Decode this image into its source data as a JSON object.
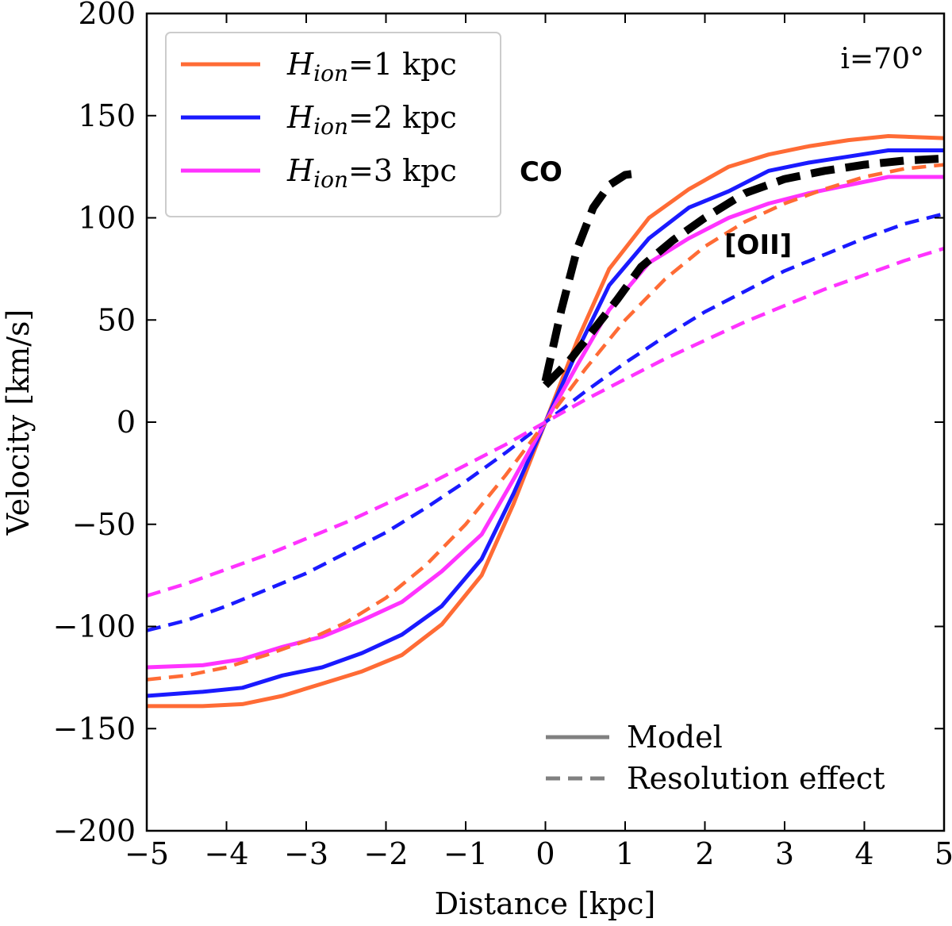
{
  "chart_data": {
    "type": "line",
    "title": "",
    "xlabel": "Distance [kpc]",
    "ylabel": "Velocity [km/s]",
    "xlim": [
      -5,
      5
    ],
    "ylim": [
      -200,
      200
    ],
    "xticks": [
      -5,
      -4,
      -3,
      -2,
      -1,
      0,
      1,
      2,
      3,
      4,
      5
    ],
    "yticks": [
      -200,
      -150,
      -100,
      -50,
      0,
      50,
      100,
      150,
      200
    ],
    "grid": false,
    "annotations": {
      "inclination": "i=70°",
      "co_label": "CO",
      "oii_label": "[OII]"
    },
    "legend_colors": {
      "placement": "top-left",
      "entries": [
        {
          "symbol": "H",
          "subscript": "ion",
          "suffix": "=1 kpc",
          "color": "#ff6b35"
        },
        {
          "symbol": "H",
          "subscript": "ion",
          "suffix": "=2 kpc",
          "color": "#1a1aff"
        },
        {
          "symbol": "H",
          "subscript": "ion",
          "suffix": "=3 kpc",
          "color": "#ff33ff"
        }
      ]
    },
    "legend_styles": {
      "placement": "bottom-right",
      "entries": [
        {
          "label": "Model",
          "style": "solid",
          "color": "#808080"
        },
        {
          "label": "Resolution effect",
          "style": "dashed",
          "color": "#808080"
        }
      ]
    },
    "series": [
      {
        "id": "model-h1",
        "style": "solid",
        "color": "#ff6b35",
        "width": 5,
        "x": [
          -5,
          -4.3,
          -3.8,
          -3.3,
          -2.8,
          -2.3,
          -1.8,
          -1.3,
          -0.8,
          -0.4,
          0,
          0.4,
          0.8,
          1.3,
          1.8,
          2.3,
          2.8,
          3.3,
          3.8,
          4.3,
          5
        ],
        "y": [
          -139,
          -139,
          -138,
          -134,
          -128,
          -122,
          -114,
          -99,
          -75,
          -40,
          0,
          40,
          75,
          100,
          114,
          125,
          131,
          135,
          138,
          140,
          139
        ]
      },
      {
        "id": "model-h2",
        "style": "solid",
        "color": "#1a1aff",
        "width": 5,
        "x": [
          -5,
          -4.3,
          -3.8,
          -3.3,
          -2.8,
          -2.3,
          -1.8,
          -1.3,
          -0.8,
          -0.4,
          0,
          0.4,
          0.8,
          1.3,
          1.8,
          2.3,
          2.8,
          3.3,
          3.8,
          4.3,
          5
        ],
        "y": [
          -134,
          -132,
          -130,
          -124,
          -120,
          -113,
          -104,
          -90,
          -67,
          -35,
          0,
          35,
          67,
          90,
          105,
          113,
          123,
          127,
          130,
          133,
          133
        ]
      },
      {
        "id": "model-h3",
        "style": "solid",
        "color": "#ff33ff",
        "width": 5,
        "x": [
          -5,
          -4.3,
          -3.8,
          -3.3,
          -2.8,
          -2.3,
          -1.8,
          -1.3,
          -0.8,
          -0.4,
          0,
          0.4,
          0.8,
          1.3,
          1.8,
          2.3,
          2.8,
          3.3,
          3.8,
          4.3,
          5
        ],
        "y": [
          -120,
          -119,
          -116,
          -110,
          -105,
          -97,
          -88,
          -73,
          -55,
          -28,
          0,
          28,
          55,
          78,
          90,
          100,
          107,
          112,
          116,
          120,
          120
        ]
      },
      {
        "id": "res-h1",
        "style": "dashed",
        "color": "#ff6b35",
        "width": 4.5,
        "x": [
          -5,
          -4.5,
          -4,
          -3.5,
          -3,
          -2.5,
          -2,
          -1.5,
          -1,
          -0.5,
          0,
          0.5,
          1,
          1.5,
          2,
          2.5,
          3,
          3.5,
          4,
          4.5,
          5
        ],
        "y": [
          -126,
          -124,
          -120,
          -114,
          -107,
          -98,
          -86,
          -70,
          -50,
          -26,
          0,
          26,
          50,
          70,
          86,
          98,
          107,
          114,
          120,
          124,
          126
        ]
      },
      {
        "id": "res-h2",
        "style": "dashed",
        "color": "#1a1aff",
        "width": 4.5,
        "x": [
          -5,
          -4.5,
          -4,
          -3.5,
          -3,
          -2.5,
          -2,
          -1.5,
          -1,
          -0.5,
          0,
          0.5,
          1,
          1.5,
          2,
          2.5,
          3,
          3.5,
          4,
          4.5,
          5
        ],
        "y": [
          -102,
          -97,
          -90,
          -82,
          -74,
          -64,
          -54,
          -42,
          -29,
          -15,
          0,
          15,
          29,
          42,
          54,
          64,
          74,
          82,
          90,
          97,
          102
        ]
      },
      {
        "id": "res-h3",
        "style": "dashed",
        "color": "#ff33ff",
        "width": 4.5,
        "x": [
          -5,
          -4.5,
          -4,
          -3.5,
          -3,
          -2.5,
          -2,
          -1.5,
          -1,
          -0.5,
          0,
          0.5,
          1,
          1.5,
          2,
          2.5,
          3,
          3.5,
          4,
          4.5,
          5
        ],
        "y": [
          -85,
          -79,
          -72,
          -65,
          -57,
          -49,
          -40,
          -31,
          -21,
          -11,
          0,
          11,
          21,
          31,
          40,
          49,
          57,
          65,
          72,
          79,
          85
        ]
      },
      {
        "id": "obs-co",
        "style": "dashed",
        "color": "#000000",
        "width": 10,
        "x": [
          0,
          0.2,
          0.4,
          0.6,
          0.8,
          1.0,
          1.2
        ],
        "y": [
          20,
          55,
          85,
          105,
          116,
          121,
          122
        ]
      },
      {
        "id": "obs-oii",
        "style": "dashed",
        "color": "#000000",
        "width": 10,
        "x": [
          0,
          0.3,
          0.6,
          0.9,
          1.2,
          1.6,
          2.0,
          2.5,
          3.0,
          3.5,
          4.0,
          4.5,
          5.0
        ],
        "y": [
          18,
          30,
          45,
          60,
          76,
          89,
          100,
          112,
          119,
          123,
          126,
          128,
          129
        ]
      }
    ]
  }
}
